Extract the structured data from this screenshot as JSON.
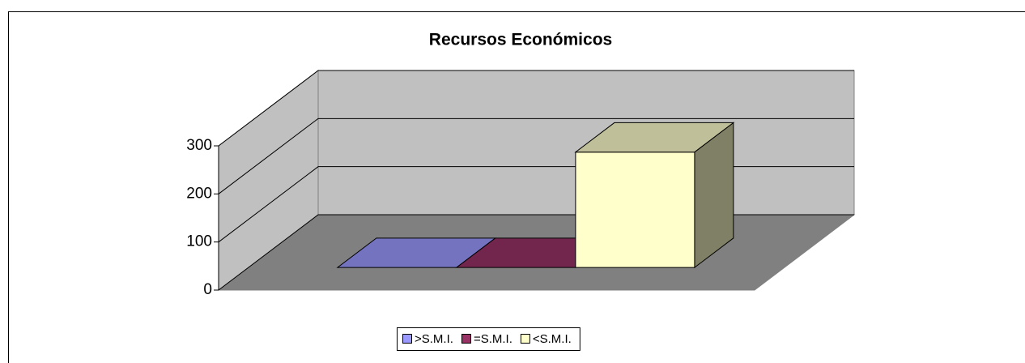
{
  "chart_data": {
    "type": "bar3d",
    "title": "Recursos Económicos",
    "series": [
      {
        "name": ">S.M.I.",
        "color": "#9999ff",
        "values": [
          0
        ]
      },
      {
        "name": "=S.M.I.",
        "color": "#993366",
        "values": [
          0
        ]
      },
      {
        "name": "<S.M.I.",
        "color": "#ffffcc",
        "values": [
          240
        ]
      }
    ],
    "ylim": [
      0,
      300
    ],
    "yticks": [
      0,
      100,
      200,
      300
    ],
    "grid": true,
    "legend": "bottom"
  }
}
